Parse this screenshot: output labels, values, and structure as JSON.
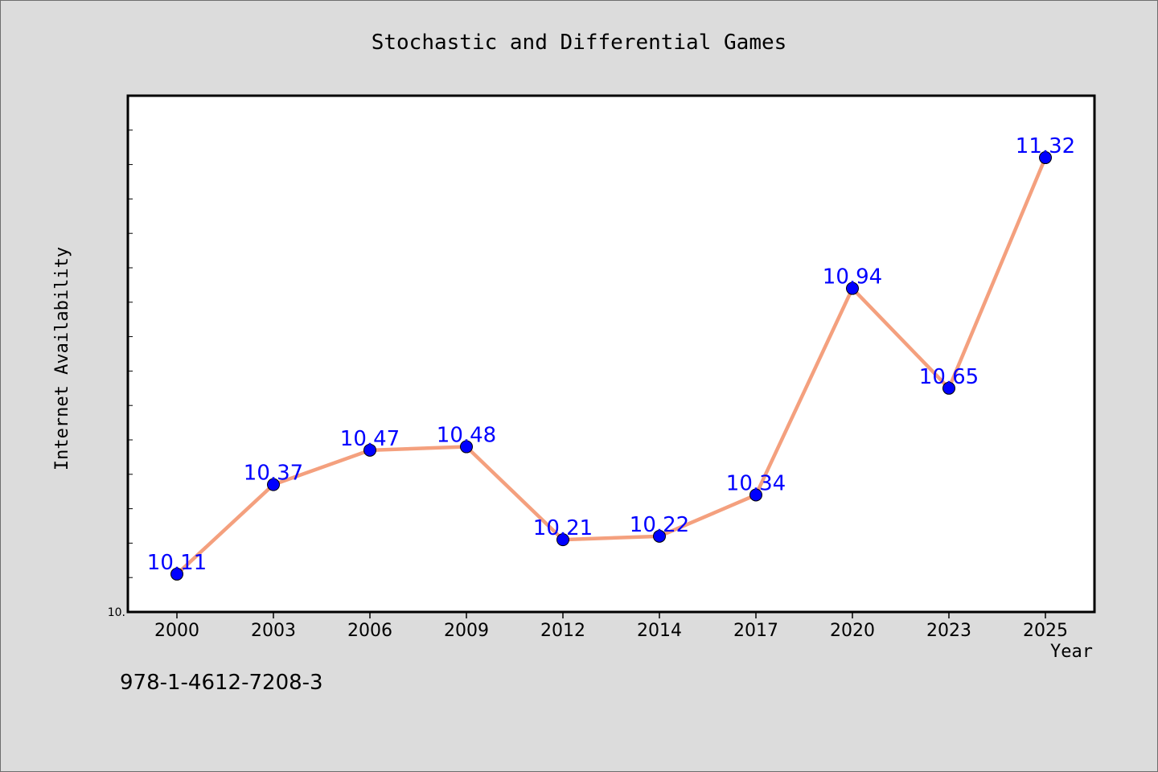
{
  "chart_data": {
    "type": "line",
    "title": "Stochastic and Differential Games",
    "xlabel": "Year",
    "ylabel": "Internet Availability",
    "categories": [
      "2000",
      "2003",
      "2006",
      "2009",
      "2012",
      "2014",
      "2017",
      "2020",
      "2023",
      "2025"
    ],
    "series": [
      {
        "values": [
          10.11,
          10.37,
          10.47,
          10.48,
          10.21,
          10.22,
          10.34,
          10.94,
          10.65,
          11.32
        ]
      }
    ],
    "data_labels": [
      "10.11",
      "10.37",
      "10.47",
      "10.48",
      "10.21",
      "10.22",
      "10.34",
      "10.94",
      "10.65",
      "11.32"
    ],
    "ylim": [
      10.0,
      11.5
    ],
    "y_tick_labels": [
      "10."
    ],
    "grid": false,
    "legend": "none",
    "colors": {
      "line": "#f4a07e",
      "marker": "#0000ff",
      "label": "#0000ff",
      "background": "#dcdcdc",
      "plot_background": "#ffffff"
    }
  },
  "footer": {
    "isbn": "978-1-4612-7208-3"
  }
}
